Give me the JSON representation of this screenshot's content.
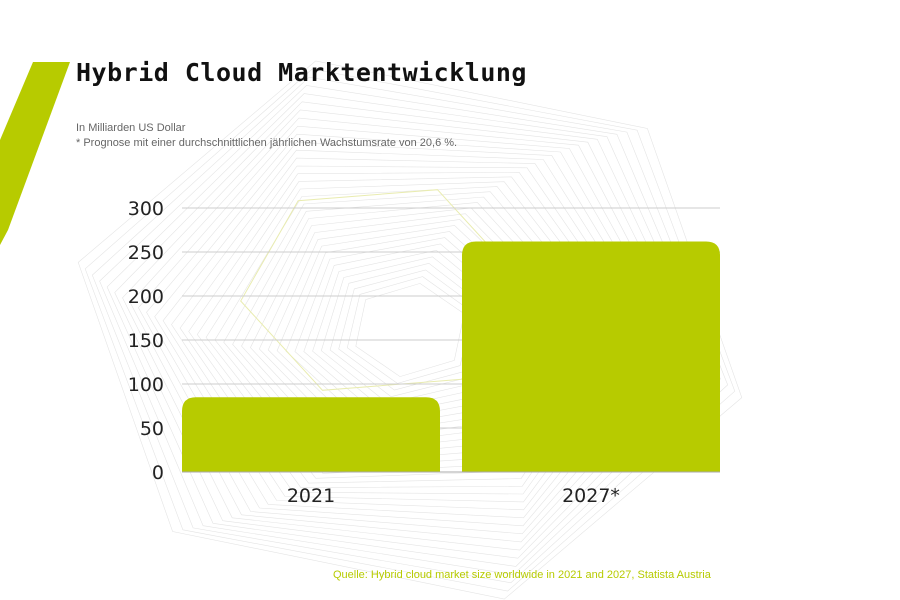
{
  "colors": {
    "accent": "#b7cb00",
    "grid": "#cccccc",
    "text": "#111111"
  },
  "header": {
    "title": "Hybrid Cloud Marktentwicklung",
    "unit_note": "In Milliarden US Dollar",
    "forecast_note": "* Prognose mit einer durchschnittlichen jährlichen Wachstumsrate von 20,6 %."
  },
  "footer": {
    "source": "Quelle: Hybrid cloud market size worldwide in 2021 and 2027, Statista Austria"
  },
  "chart_data": {
    "type": "bar",
    "title": "Hybrid Cloud Marktentwicklung",
    "subtitle": "In Milliarden US Dollar",
    "xlabel": "",
    "ylabel": "",
    "categories": [
      "2021",
      "2027*"
    ],
    "values": [
      85,
      262
    ],
    "ylim": [
      0,
      300
    ],
    "yticks": [
      0,
      50,
      100,
      150,
      200,
      250,
      300
    ],
    "grid": true,
    "legend": "none"
  }
}
